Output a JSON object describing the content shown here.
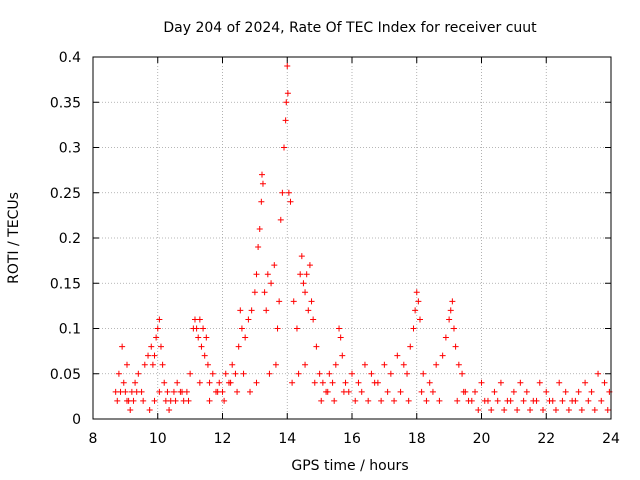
{
  "chart_data": {
    "type": "scatter",
    "title": "Day 204 of 2024, Rate Of TEC Index for receiver cuut",
    "xlabel": "GPS time / hours",
    "ylabel": "ROTI / TECUs",
    "xlim": [
      8,
      24
    ],
    "ylim": [
      0,
      0.4
    ],
    "xticks": [
      8,
      10,
      12,
      14,
      16,
      18,
      20,
      22,
      24
    ],
    "yticks": [
      0,
      0.05,
      0.1,
      0.15,
      0.2,
      0.25,
      0.3,
      0.35,
      0.4
    ],
    "ytick_labels": [
      "0",
      "0.05",
      "0.1",
      "0.15",
      "0.2",
      "0.25",
      "0.3",
      "0.35",
      "0.4"
    ],
    "grid": true,
    "marker": "+",
    "color": "#ff0000",
    "series": [
      {
        "name": "ROTI",
        "x": [
          8.7,
          8.8,
          8.9,
          8.95,
          9.0,
          9.05,
          9.1,
          9.2,
          9.3,
          9.4,
          9.5,
          9.6,
          9.7,
          9.8,
          9.85,
          9.9,
          9.95,
          10.0,
          10.05,
          10.1,
          10.15,
          10.2,
          10.25,
          10.3,
          10.4,
          10.5,
          10.6,
          10.7,
          10.8,
          10.9,
          11.0,
          11.1,
          11.15,
          11.2,
          11.25,
          11.3,
          11.35,
          11.4,
          11.45,
          11.5,
          11.55,
          11.6,
          11.7,
          11.8,
          11.9,
          12.0,
          12.1,
          12.2,
          12.3,
          12.4,
          12.5,
          12.55,
          12.6,
          12.7,
          12.8,
          12.9,
          13.0,
          13.05,
          13.1,
          13.15,
          13.2,
          13.22,
          13.25,
          13.3,
          13.35,
          13.4,
          13.5,
          13.6,
          13.7,
          13.75,
          13.8,
          13.85,
          13.9,
          13.95,
          13.97,
          14.0,
          14.02,
          14.05,
          14.1,
          14.2,
          14.3,
          14.4,
          14.45,
          14.5,
          14.55,
          14.6,
          14.65,
          14.7,
          14.75,
          14.8,
          14.9,
          15.0,
          15.1,
          15.2,
          15.3,
          15.4,
          15.5,
          15.6,
          15.65,
          15.7,
          15.8,
          15.9,
          16.0,
          16.2,
          16.4,
          16.6,
          16.8,
          17.0,
          17.2,
          17.4,
          17.6,
          17.7,
          17.8,
          17.9,
          17.95,
          18.0,
          18.05,
          18.1,
          18.2,
          18.4,
          18.6,
          18.8,
          18.9,
          19.0,
          19.05,
          19.1,
          19.15,
          19.2,
          19.3,
          19.4,
          19.5,
          19.6,
          19.8,
          20.0,
          20.2,
          20.4,
          20.6,
          20.8,
          21.0,
          21.2,
          21.4,
          21.6,
          21.8,
          22.0,
          22.2,
          22.4,
          22.6,
          22.8,
          23.0,
          23.2,
          23.4,
          23.6,
          23.8,
          23.95,
          8.75,
          8.85,
          9.05,
          9.15,
          9.25,
          9.35,
          9.55,
          9.75,
          9.9,
          10.05,
          10.35,
          10.55,
          10.75,
          10.95,
          11.3,
          11.6,
          11.85,
          12.05,
          12.25,
          12.45,
          12.65,
          12.85,
          13.05,
          13.45,
          13.65,
          14.15,
          14.35,
          14.55,
          14.85,
          15.05,
          15.25,
          15.45,
          15.75,
          16.1,
          16.3,
          16.5,
          16.7,
          16.9,
          17.1,
          17.3,
          17.5,
          17.75,
          18.15,
          18.3,
          18.5,
          18.7,
          19.25,
          19.45,
          19.7,
          19.9,
          20.1,
          20.3,
          20.5,
          20.7,
          20.9,
          21.1,
          21.3,
          21.5,
          21.7,
          21.9,
          22.1,
          22.3,
          22.5,
          22.7,
          22.9,
          23.1,
          23.3,
          23.5,
          23.7,
          23.9
        ],
        "y": [
          0.03,
          0.05,
          0.08,
          0.04,
          0.03,
          0.06,
          0.02,
          0.03,
          0.04,
          0.05,
          0.03,
          0.06,
          0.07,
          0.08,
          0.06,
          0.07,
          0.09,
          0.1,
          0.11,
          0.08,
          0.06,
          0.04,
          0.02,
          0.03,
          0.02,
          0.03,
          0.04,
          0.03,
          0.02,
          0.03,
          0.05,
          0.1,
          0.11,
          0.1,
          0.09,
          0.11,
          0.08,
          0.1,
          0.07,
          0.09,
          0.06,
          0.04,
          0.05,
          0.03,
          0.04,
          0.03,
          0.05,
          0.04,
          0.06,
          0.05,
          0.08,
          0.12,
          0.1,
          0.09,
          0.11,
          0.12,
          0.14,
          0.16,
          0.19,
          0.21,
          0.24,
          0.27,
          0.26,
          0.14,
          0.12,
          0.16,
          0.15,
          0.17,
          0.1,
          0.13,
          0.22,
          0.25,
          0.3,
          0.33,
          0.35,
          0.39,
          0.36,
          0.25,
          0.24,
          0.13,
          0.1,
          0.16,
          0.18,
          0.15,
          0.14,
          0.16,
          0.12,
          0.17,
          0.13,
          0.11,
          0.08,
          0.05,
          0.04,
          0.03,
          0.05,
          0.04,
          0.06,
          0.1,
          0.09,
          0.07,
          0.04,
          0.03,
          0.05,
          0.04,
          0.06,
          0.05,
          0.04,
          0.06,
          0.05,
          0.07,
          0.06,
          0.05,
          0.08,
          0.1,
          0.12,
          0.14,
          0.13,
          0.11,
          0.05,
          0.04,
          0.06,
          0.07,
          0.09,
          0.11,
          0.12,
          0.13,
          0.1,
          0.08,
          0.06,
          0.05,
          0.03,
          0.02,
          0.03,
          0.04,
          0.02,
          0.03,
          0.04,
          0.02,
          0.03,
          0.04,
          0.03,
          0.02,
          0.04,
          0.03,
          0.02,
          0.04,
          0.03,
          0.02,
          0.03,
          0.04,
          0.03,
          0.05,
          0.04,
          0.03,
          0.02,
          0.03,
          0.02,
          0.01,
          0.02,
          0.03,
          0.02,
          0.01,
          0.02,
          0.03,
          0.01,
          0.02,
          0.03,
          0.02,
          0.04,
          0.02,
          0.03,
          0.02,
          0.04,
          0.03,
          0.05,
          0.03,
          0.04,
          0.05,
          0.06,
          0.04,
          0.05,
          0.06,
          0.04,
          0.02,
          0.03,
          0.02,
          0.03,
          0.02,
          0.03,
          0.02,
          0.04,
          0.02,
          0.03,
          0.02,
          0.03,
          0.02,
          0.03,
          0.02,
          0.03,
          0.02,
          0.02,
          0.03,
          0.02,
          0.01,
          0.02,
          0.01,
          0.02,
          0.01,
          0.02,
          0.01,
          0.02,
          0.01,
          0.02,
          0.01,
          0.02,
          0.01,
          0.02,
          0.01,
          0.02,
          0.01,
          0.02,
          0.01,
          0.02,
          0.01
        ]
      }
    ]
  }
}
